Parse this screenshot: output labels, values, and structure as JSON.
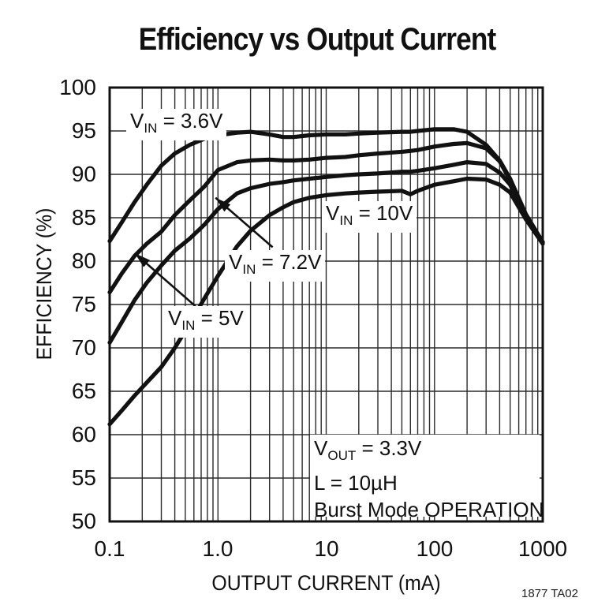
{
  "title": "Efficiency vs Output Current",
  "y_axis": {
    "label": "EFFICIENCY (%)",
    "ticks": [
      "100",
      "95",
      "90",
      "85",
      "80",
      "75",
      "70",
      "65",
      "60",
      "55",
      "50"
    ]
  },
  "x_axis": {
    "label": "OUTPUT CURRENT (mA)",
    "ticks": [
      "0.1",
      "1.0",
      "10",
      "100",
      "1000"
    ]
  },
  "footnote": "1877 TA02",
  "curve_labels": [
    {
      "v": "V",
      "sub": "IN",
      "rest": " = 3.6V"
    },
    {
      "v": "V",
      "sub": "IN",
      "rest": " = 10V"
    },
    {
      "v": "V",
      "sub": "IN",
      "rest": " = 7.2V"
    },
    {
      "v": "V",
      "sub": "IN",
      "rest": " = 5V"
    }
  ],
  "conditions": {
    "v": "V",
    "sub": "OUT",
    "line1_rest": " = 3.3V",
    "line2": "L = 10µH",
    "line3": "Burst Mode OPERATION"
  },
  "colors": {
    "ink": "#111111",
    "grid": "#2b2b2b",
    "background": "#ffffff"
  },
  "chart_data": {
    "type": "line",
    "x_scale": "log",
    "title": "Efficiency vs Output Current",
    "xlabel": "OUTPUT CURRENT (mA)",
    "ylabel": "EFFICIENCY (%)",
    "xlim": [
      0.1,
      1000
    ],
    "ylim": [
      50,
      100
    ],
    "y_tick_values": [
      100,
      95,
      90,
      85,
      80,
      75,
      70,
      65,
      60,
      55,
      50
    ],
    "x_tick_values": [
      0.1,
      1,
      10,
      100,
      1000
    ],
    "grid": "both-major-and-log-minor",
    "legend_position": "inline-labels",
    "x": [
      0.1,
      0.13,
      0.17,
      0.22,
      0.3,
      0.4,
      0.55,
      0.75,
      1,
      1.5,
      2,
      3,
      4,
      5,
      7,
      10,
      15,
      20,
      30,
      50,
      60,
      70,
      100,
      150,
      200,
      300,
      400,
      500,
      700,
      1000
    ],
    "series": [
      {
        "name": "VIN = 3.6V",
        "values": [
          82.3,
          84.5,
          86.8,
          88.8,
          91,
          92.4,
          93.4,
          94.1,
          94.5,
          94.8,
          94.9,
          94.6,
          94.3,
          94.3,
          94.5,
          94.6,
          94.6,
          94.7,
          94.8,
          94.9,
          94.9,
          95,
          95.2,
          95.2,
          94.9,
          93.4,
          91.6,
          89.5,
          85.4,
          82.2
        ]
      },
      {
        "name": "VIN = 5V",
        "values": [
          76.4,
          78.6,
          80.6,
          82,
          83.4,
          85.3,
          87,
          88.6,
          90.5,
          91.4,
          91.6,
          91.7,
          91.6,
          91.6,
          91.7,
          91.9,
          92,
          92.2,
          92.4,
          92.6,
          92.7,
          92.8,
          93.2,
          93.5,
          93.6,
          93,
          91.5,
          89.3,
          85.2,
          82.2
        ]
      },
      {
        "name": "VIN = 7.2V",
        "values": [
          70.6,
          73,
          75.5,
          77.5,
          79.5,
          81.2,
          82.6,
          84.2,
          86,
          87.8,
          88.4,
          88.9,
          89.1,
          89.3,
          89.5,
          89.7,
          89.9,
          90,
          90.1,
          90.3,
          90.3,
          90.4,
          90.7,
          91.1,
          91.4,
          91.2,
          90.2,
          88.8,
          85,
          82.1
        ]
      },
      {
        "name": "VIN = 10V",
        "values": [
          61.2,
          62.8,
          64.5,
          66,
          67.8,
          70,
          72.8,
          75.7,
          78.3,
          81.7,
          83.5,
          85.3,
          86.2,
          86.8,
          87.3,
          87.6,
          87.8,
          87.9,
          88,
          88.1,
          87.7,
          88.1,
          88.8,
          89.2,
          89.5,
          89.4,
          88.8,
          87.9,
          84.8,
          82
        ]
      }
    ],
    "annotations": {
      "conditions": [
        "VOUT = 3.3V",
        "L = 10µH",
        "Burst Mode OPERATION"
      ],
      "arrows": [
        {
          "label": "VIN = 7.2V",
          "from": [
            3.2,
            81.6
          ],
          "to": [
            0.95,
            87.3
          ]
        },
        {
          "label": "VIN = 5V",
          "from": [
            0.62,
            74.8
          ],
          "to": [
            0.171,
            80.9
          ]
        }
      ]
    }
  }
}
